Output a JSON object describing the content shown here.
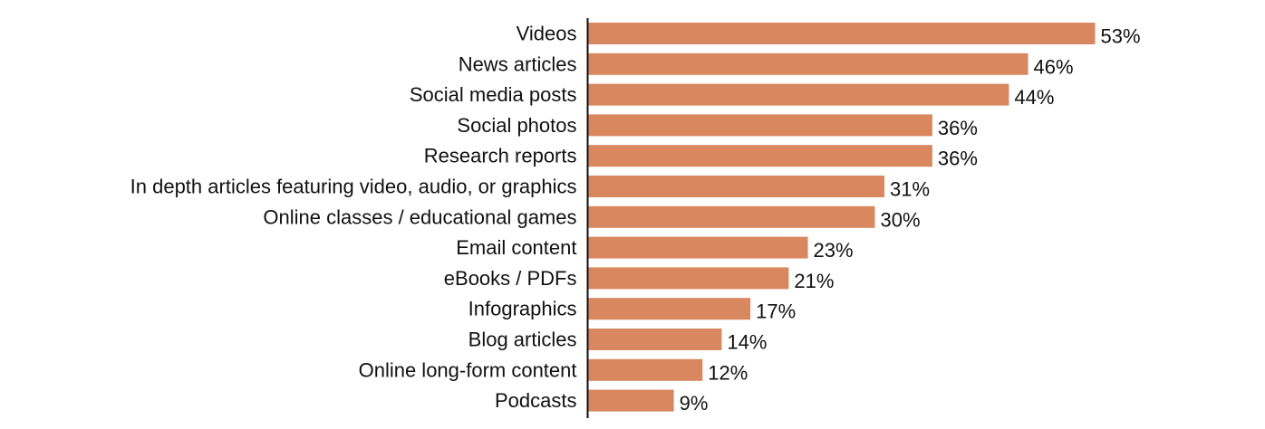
{
  "chart_data": {
    "type": "bar",
    "orientation": "horizontal",
    "title": "",
    "xlabel": "",
    "ylabel": "",
    "categories": [
      "Videos",
      "News articles",
      "Social media posts",
      "Social photos",
      "Research reports",
      "In depth articles featuring video, audio, or graphics",
      "Online classes / educational games",
      "Email content",
      "eBooks / PDFs",
      "Infographics",
      "Blog articles",
      "Online long-form content",
      "Podcasts"
    ],
    "values": [
      53,
      46,
      44,
      36,
      36,
      31,
      30,
      23,
      21,
      17,
      14,
      12,
      9
    ],
    "value_labels": [
      "53%",
      "46%",
      "44%",
      "36%",
      "36%",
      "31%",
      "30%",
      "23%",
      "21%",
      "17%",
      "14%",
      "12%",
      "9%"
    ],
    "xlim": [
      0,
      53
    ],
    "grid": false,
    "legend": "none",
    "bar_color": "#d9875e",
    "axis_color": "#111111"
  }
}
